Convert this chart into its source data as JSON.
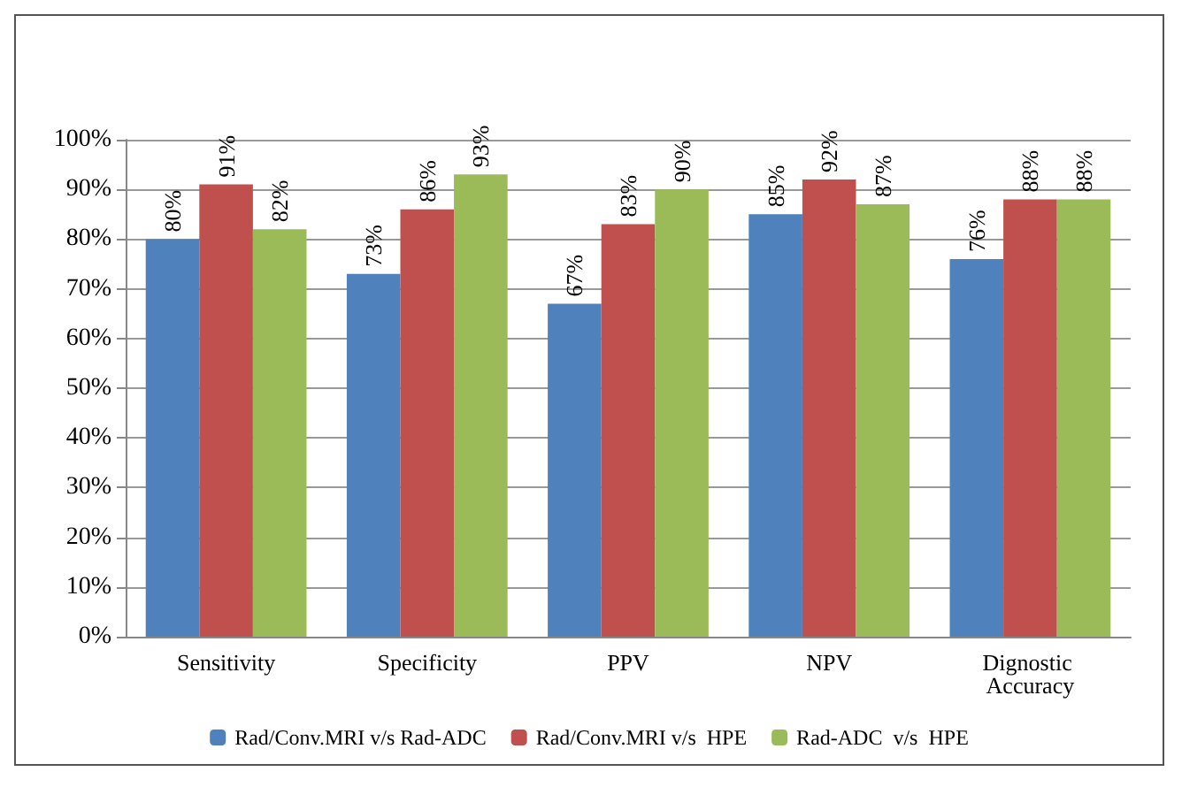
{
  "chart_data": {
    "type": "bar",
    "categories": [
      "Sensitivity",
      "Specificity",
      "PPV",
      "NPV",
      "Dignostic Accuracy"
    ],
    "series": [
      {
        "name": "Rad/Conv.MRI v/s Rad-ADC",
        "color": "#4f81bd",
        "values": [
          80,
          73,
          67,
          85,
          76
        ],
        "value_labels": [
          "80%",
          "73%",
          "67%",
          "85%",
          "76%"
        ]
      },
      {
        "name": "Rad/Conv.MRI v/s  HPE",
        "color": "#c0504d",
        "values": [
          91,
          86,
          83,
          92,
          88
        ],
        "value_labels": [
          "91%",
          "86%",
          "83%",
          "92%",
          "88%"
        ]
      },
      {
        "name": "Rad-ADC  v/s  HPE",
        "color": "#9bbb59",
        "values": [
          82,
          93,
          90,
          87,
          88
        ],
        "value_labels": [
          "82%",
          "93%",
          "90%",
          "87%",
          "88%"
        ]
      }
    ],
    "ylim": [
      0,
      100
    ],
    "yticks": [
      {
        "value": 0,
        "label": "0%"
      },
      {
        "value": 10,
        "label": "10%"
      },
      {
        "value": 20,
        "label": "20%"
      },
      {
        "value": 30,
        "label": "30%"
      },
      {
        "value": 40,
        "label": "40%"
      },
      {
        "value": 50,
        "label": "50%"
      },
      {
        "value": 60,
        "label": "60%"
      },
      {
        "value": 70,
        "label": "70%"
      },
      {
        "value": 80,
        "label": "80%"
      },
      {
        "value": 90,
        "label": "90%"
      },
      {
        "value": 100,
        "label": "100%"
      }
    ],
    "grid": "y",
    "legend": "bottom"
  }
}
